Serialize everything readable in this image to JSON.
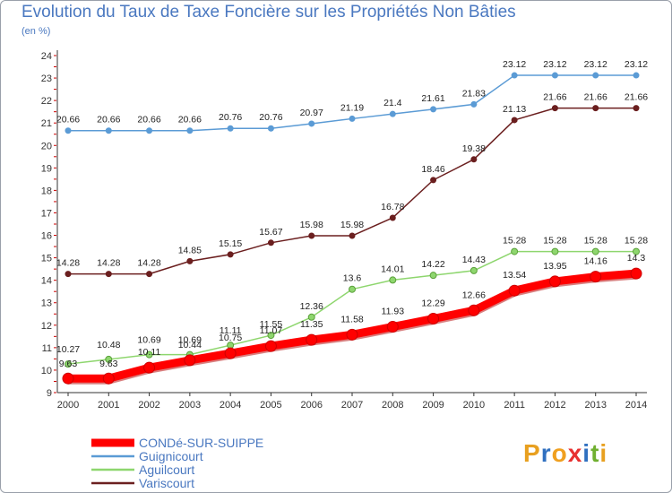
{
  "title": "Evolution du Taux de Taxe Foncière sur les Propriétés Non Bâties",
  "subtitle": "(en %)",
  "logo": [
    "P",
    "r",
    "o",
    "x",
    "i",
    "t",
    "i"
  ],
  "colors": {
    "title": "#4a78c0",
    "axis": "#333333",
    "grid_tick": "#cc0000",
    "logo": [
      "#e8a020",
      "#3070c0",
      "#f0a020",
      "#e83030",
      "#3070c0",
      "#70b030",
      "#e8a020"
    ]
  },
  "chart_data": {
    "type": "line",
    "x": [
      2000,
      2001,
      2002,
      2003,
      2004,
      2005,
      2006,
      2007,
      2008,
      2009,
      2010,
      2011,
      2012,
      2013,
      2014
    ],
    "ylim": [
      9,
      24
    ],
    "yticks": [
      9,
      10,
      11,
      12,
      13,
      14,
      15,
      16,
      17,
      18,
      19,
      20,
      21,
      22,
      23,
      24
    ],
    "xlabel": "",
    "ylabel": "",
    "legend_position": "bottom-left",
    "series": [
      {
        "name": "CONDé-SUR-SUIPPE",
        "color": "#ff0000",
        "labelColor": "#222222",
        "width": 9,
        "marker": 6,
        "values": [
          9.63,
          9.63,
          10.11,
          10.44,
          10.75,
          11.07,
          11.35,
          11.58,
          11.93,
          12.29,
          12.66,
          13.54,
          13.95,
          14.16,
          14.3
        ],
        "labels": [
          "9.63",
          "9.63",
          "10.11",
          "10.44",
          "10.75",
          "11.07",
          "11.35",
          "11.58",
          "11.93",
          "12.29",
          "12.66",
          "13.54",
          "13.95",
          "14.16",
          "14.3"
        ]
      },
      {
        "name": "Guignicourt",
        "color": "#5b9bd5",
        "labelColor": "#222222",
        "width": 1.5,
        "marker": 3,
        "values": [
          20.66,
          20.66,
          20.66,
          20.66,
          20.76,
          20.76,
          20.97,
          21.19,
          21.4,
          21.61,
          21.83,
          23.12,
          23.12,
          23.12,
          23.12
        ],
        "labels": [
          "20.66",
          "20.66",
          "20.66",
          "20.66",
          "20.76",
          "20.76",
          "20.97",
          "21.19",
          "21.4",
          "21.61",
          "21.83",
          "23.12",
          "23.12",
          "23.12",
          "23.12"
        ]
      },
      {
        "name": "Aguilcourt",
        "color": "#8ed66e",
        "labelColor": "#222222",
        "width": 1.5,
        "marker": 3.5,
        "values": [
          10.27,
          10.48,
          10.69,
          10.69,
          11.11,
          11.55,
          12.36,
          13.6,
          14.01,
          14.22,
          14.43,
          15.28,
          15.28,
          15.28,
          15.28
        ],
        "labels": [
          "10.27",
          "10.48",
          "10.69",
          "10.69",
          "11.11",
          "11.55",
          "12.36",
          "13.6",
          "14.01",
          "14.22",
          "14.43",
          "15.28",
          "15.28",
          "15.28",
          "15.28"
        ]
      },
      {
        "name": "Variscourt",
        "color": "#6b1f1f",
        "labelColor": "#222222",
        "width": 1.5,
        "marker": 3,
        "values": [
          14.28,
          14.28,
          14.28,
          14.85,
          15.15,
          15.67,
          15.98,
          15.98,
          16.78,
          18.46,
          19.38,
          21.13,
          21.66,
          21.66,
          21.66
        ],
        "labels": [
          "14.28",
          "14.28",
          "14.28",
          "14.85",
          "15.15",
          "15.67",
          "15.98",
          "15.98",
          "16.78",
          "18.46",
          "19.38",
          "21.13",
          "21.66",
          "21.66",
          "21.66"
        ]
      }
    ]
  }
}
